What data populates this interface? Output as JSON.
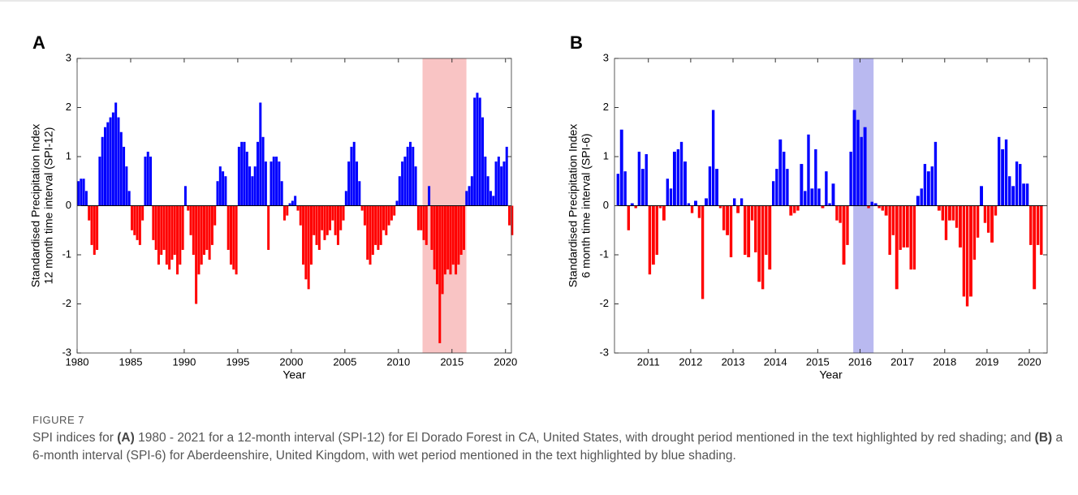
{
  "charts": [
    {
      "type": "bar",
      "panel": "A",
      "ylabel": [
        "Standardised Precipitation Index",
        "12 month time interval (SPI-12)"
      ],
      "xlabel": "Year",
      "pos_color": "#0000ff",
      "neg_color": "#ff0000",
      "highlight": {
        "span": [
          2012.25,
          2016.35
        ],
        "color": "#f9c4c4"
      },
      "xlim": [
        1980,
        2020.55
      ],
      "ylim": [
        -3,
        3
      ],
      "xticks": [
        1980,
        1985,
        1990,
        1995,
        2000,
        2005,
        2010,
        2015,
        2020
      ],
      "yticks": [
        -3,
        -2,
        -1,
        0,
        1,
        2,
        3
      ],
      "x": [
        1980,
        1980.25,
        1980.5,
        1980.75,
        1981,
        1981.25,
        1981.5,
        1981.75,
        1982,
        1982.25,
        1982.5,
        1982.75,
        1983,
        1983.25,
        1983.5,
        1983.75,
        1984,
        1984.25,
        1984.5,
        1984.75,
        1985,
        1985.25,
        1985.5,
        1985.75,
        1986,
        1986.25,
        1986.5,
        1986.75,
        1987,
        1987.25,
        1987.5,
        1987.75,
        1988,
        1988.25,
        1988.5,
        1988.75,
        1989,
        1989.25,
        1989.5,
        1989.75,
        1990,
        1990.25,
        1990.5,
        1990.75,
        1991,
        1991.25,
        1991.5,
        1991.75,
        1992,
        1992.25,
        1992.5,
        1992.75,
        1993,
        1993.25,
        1993.5,
        1993.75,
        1994,
        1994.25,
        1994.5,
        1994.75,
        1995,
        1995.25,
        1995.5,
        1995.75,
        1996,
        1996.25,
        1996.5,
        1996.75,
        1997,
        1997.25,
        1997.5,
        1997.75,
        1998,
        1998.25,
        1998.5,
        1998.75,
        1999,
        1999.25,
        1999.5,
        1999.75,
        2000,
        2000.25,
        2000.5,
        2000.75,
        2001,
        2001.25,
        2001.5,
        2001.75,
        2002,
        2002.25,
        2002.5,
        2002.75,
        2003,
        2003.25,
        2003.5,
        2003.75,
        2004,
        2004.25,
        2004.5,
        2004.75,
        2005,
        2005.25,
        2005.5,
        2005.75,
        2006,
        2006.25,
        2006.5,
        2006.75,
        2007,
        2007.25,
        2007.5,
        2007.75,
        2008,
        2008.25,
        2008.5,
        2008.75,
        2009,
        2009.25,
        2009.5,
        2009.75,
        2010,
        2010.25,
        2010.5,
        2010.75,
        2011,
        2011.25,
        2011.5,
        2011.75,
        2012,
        2012.25,
        2012.5,
        2012.75,
        2013,
        2013.25,
        2013.5,
        2013.75,
        2014,
        2014.25,
        2014.5,
        2014.75,
        2015,
        2015.25,
        2015.5,
        2015.75,
        2016,
        2016.25,
        2016.5,
        2016.75,
        2017,
        2017.25,
        2017.5,
        2017.75,
        2018,
        2018.25,
        2018.5,
        2018.75,
        2019,
        2019.25,
        2019.5,
        2019.75,
        2020,
        2020.25,
        2020.5
      ],
      "values": [
        0.5,
        0.55,
        0.55,
        0.3,
        -0.3,
        -0.8,
        -1.0,
        -0.9,
        1.0,
        1.4,
        1.6,
        1.7,
        1.8,
        1.9,
        2.1,
        1.8,
        1.5,
        1.2,
        0.8,
        0.3,
        -0.5,
        -0.6,
        -0.7,
        -0.8,
        -0.3,
        1.0,
        1.1,
        1.0,
        -0.7,
        -0.9,
        -1.2,
        -1.0,
        -0.9,
        -1.2,
        -1.3,
        -1.1,
        -1.0,
        -1.4,
        -1.2,
        -0.9,
        0.4,
        -0.1,
        -0.6,
        -1.0,
        -2.0,
        -1.4,
        -1.2,
        -1.0,
        -0.9,
        -1.1,
        -0.8,
        -0.4,
        0.5,
        0.8,
        0.7,
        0.6,
        -0.9,
        -1.2,
        -1.3,
        -1.4,
        1.2,
        1.3,
        1.3,
        1.1,
        0.8,
        0.6,
        0.8,
        1.3,
        2.1,
        1.4,
        0.9,
        -0.9,
        0.9,
        1.0,
        1.0,
        0.9,
        0.5,
        -0.3,
        -0.2,
        0.05,
        0.1,
        0.2,
        -0.1,
        -0.4,
        -1.2,
        -1.5,
        -1.7,
        -1.2,
        -0.6,
        -0.8,
        -0.9,
        -0.5,
        -0.7,
        -0.6,
        -0.5,
        -0.3,
        -0.6,
        -0.8,
        -0.5,
        -0.3,
        0.3,
        0.9,
        1.2,
        1.3,
        0.9,
        0.5,
        -0.1,
        -0.4,
        -1.1,
        -1.2,
        -1.0,
        -0.8,
        -0.9,
        -0.8,
        -0.5,
        -0.6,
        -0.4,
        -0.3,
        -0.2,
        0.1,
        0.6,
        0.9,
        1.0,
        1.2,
        1.3,
        1.2,
        0.8,
        -0.5,
        -0.5,
        -0.7,
        -0.8,
        0.4,
        -0.9,
        -1.3,
        -1.6,
        -2.8,
        -1.8,
        -1.4,
        -1.3,
        -1.4,
        -1.2,
        -1.4,
        -1.2,
        -1.0,
        -0.9,
        0.3,
        0.4,
        0.6,
        2.2,
        2.3,
        2.2,
        1.8,
        1.0,
        0.6,
        0.3,
        0.2,
        0.9,
        1.0,
        0.8,
        0.9,
        1.2,
        -0.4,
        -0.6
      ]
    },
    {
      "type": "bar",
      "panel": "B",
      "ylabel": [
        "Standardised Precipitation Index",
        "6 month time interval (SPI-6)"
      ],
      "xlabel": "Year",
      "pos_color": "#0000ff",
      "neg_color": "#ff0000",
      "highlight": {
        "span": [
          2015.84,
          2016.32
        ],
        "color": "#b9b9f0"
      },
      "xlim": [
        2010.2,
        2020.42
      ],
      "ylim": [
        -3,
        3
      ],
      "xticks": [
        2011,
        2012,
        2013,
        2014,
        2015,
        2016,
        2017,
        2018,
        2019,
        2020
      ],
      "yticks": [
        -3,
        -2,
        -1,
        0,
        1,
        2,
        3
      ],
      "x": [
        2010.25,
        2010.33,
        2010.42,
        2010.5,
        2010.58,
        2010.67,
        2010.75,
        2010.83,
        2010.92,
        2011,
        2011.08,
        2011.17,
        2011.25,
        2011.33,
        2011.42,
        2011.5,
        2011.58,
        2011.67,
        2011.75,
        2011.83,
        2011.92,
        2012,
        2012.08,
        2012.17,
        2012.25,
        2012.33,
        2012.42,
        2012.5,
        2012.58,
        2012.67,
        2012.75,
        2012.83,
        2012.92,
        2013,
        2013.08,
        2013.17,
        2013.25,
        2013.33,
        2013.42,
        2013.5,
        2013.58,
        2013.67,
        2013.75,
        2013.83,
        2013.92,
        2014,
        2014.08,
        2014.17,
        2014.25,
        2014.33,
        2014.42,
        2014.5,
        2014.58,
        2014.67,
        2014.75,
        2014.83,
        2014.92,
        2015,
        2015.08,
        2015.17,
        2015.25,
        2015.33,
        2015.42,
        2015.5,
        2015.58,
        2015.67,
        2015.75,
        2015.83,
        2015.92,
        2016,
        2016.08,
        2016.17,
        2016.25,
        2016.33,
        2016.42,
        2016.5,
        2016.58,
        2016.67,
        2016.75,
        2016.83,
        2016.92,
        2017,
        2017.08,
        2017.17,
        2017.25,
        2017.33,
        2017.42,
        2017.5,
        2017.58,
        2017.67,
        2017.75,
        2017.83,
        2017.92,
        2018,
        2018.08,
        2018.17,
        2018.25,
        2018.33,
        2018.42,
        2018.5,
        2018.58,
        2018.67,
        2018.75,
        2018.83,
        2018.92,
        2019,
        2019.08,
        2019.17,
        2019.25,
        2019.33,
        2019.42,
        2019.5,
        2019.58,
        2019.67,
        2019.75,
        2019.83,
        2019.92,
        2020,
        2020.08,
        2020.17,
        2020.25
      ],
      "values": [
        0.65,
        1.55,
        0.7,
        -0.5,
        0.05,
        -0.05,
        1.1,
        0.75,
        1.05,
        -1.4,
        -1.2,
        -1.0,
        -0.05,
        -0.3,
        0.55,
        0.35,
        1.1,
        1.15,
        1.3,
        0.9,
        0.05,
        -0.15,
        0.1,
        -0.25,
        -1.9,
        0.15,
        0.8,
        1.95,
        0.75,
        -0.05,
        -0.5,
        -0.6,
        -1.05,
        0.15,
        -0.15,
        0.15,
        -1.0,
        -1.05,
        -0.3,
        -0.95,
        -1.55,
        -1.7,
        -1.0,
        -1.3,
        0.5,
        0.75,
        1.35,
        1.1,
        0.75,
        -0.2,
        -0.15,
        -0.1,
        0.85,
        0.3,
        1.45,
        0.35,
        1.15,
        0.35,
        -0.05,
        0.7,
        0.05,
        0.45,
        -0.3,
        -0.35,
        -1.2,
        -0.8,
        1.1,
        1.95,
        1.75,
        1.4,
        1.6,
        -0.05,
        0.08,
        0.05,
        -0.05,
        -0.1,
        -0.2,
        -1.0,
        -0.6,
        -1.7,
        -0.9,
        -0.85,
        -0.85,
        -1.3,
        -1.3,
        0.2,
        0.35,
        0.85,
        0.7,
        0.8,
        1.3,
        -0.1,
        -0.3,
        -0.7,
        -0.3,
        -0.3,
        -0.45,
        -0.85,
        -1.85,
        -2.05,
        -1.85,
        -1.1,
        -0.65,
        0.4,
        -0.35,
        -0.55,
        -0.75,
        -0.2,
        1.4,
        1.15,
        1.35,
        0.6,
        0.4,
        0.9,
        0.85,
        0.45,
        0.45,
        -0.8,
        -1.7,
        -0.8,
        -1.0
      ]
    }
  ],
  "caption": {
    "label": "FIGURE 7",
    "parts": [
      "SPI indices for ",
      "(A)",
      " 1980 - 2021 for a 12-month interval (SPI-12) for El Dorado Forest in CA, United States, with drought period mentioned in the text highlighted by red shading; and ",
      "(B)",
      " a 6-month interval (SPI-6) for Aberdeenshire, United Kingdom, with wet period mentioned in the text highlighted by blue shading."
    ]
  }
}
